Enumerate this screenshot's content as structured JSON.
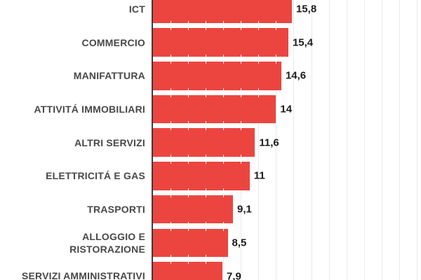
{
  "chart_data": {
    "type": "bar",
    "orientation": "horizontal",
    "title": "",
    "xlabel": "",
    "ylabel": "",
    "categories": [
      "ICT",
      "COMMERCIO",
      "MANIFATTURA",
      "ATTIVITÁ IMMOBILIARI",
      "ALTRI SERVIZI",
      "ELETTRICITÁ E GAS",
      "TRASPORTI",
      "ALLOGGIO E\nRISTORAZIONE",
      "SERVIZI AMMINISTRATIVI"
    ],
    "values": [
      15.8,
      15.4,
      14.6,
      14,
      11.6,
      11,
      9.1,
      8.5,
      7.9
    ],
    "value_labels": [
      "15,8",
      "15,4",
      "14,6",
      "14",
      "11,6",
      "11",
      "9,1",
      "8,5",
      "7,9"
    ],
    "xlim": [
      0,
      30
    ],
    "gridline_step": 2,
    "grid": true,
    "legend": false,
    "colors": {
      "bar": "#ec4540",
      "category_label": "#484848",
      "value_label": "#1c1c1c",
      "gridline": "#e9e9e9",
      "axis_line": "#3b3b3b",
      "background": "#ffffff"
    }
  }
}
